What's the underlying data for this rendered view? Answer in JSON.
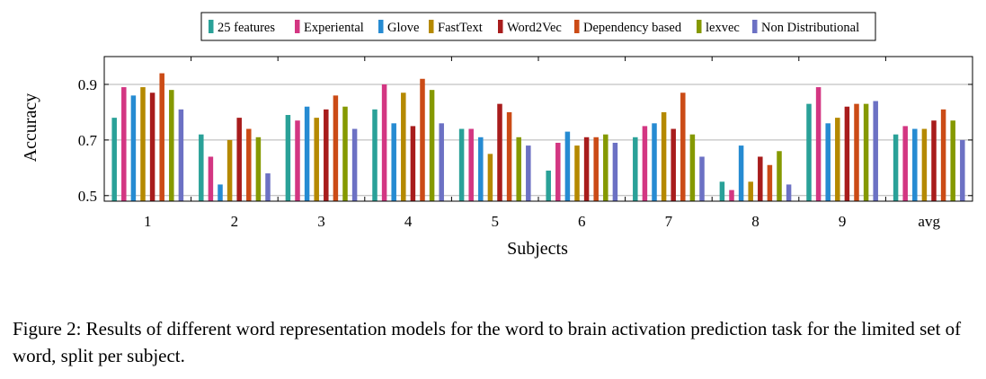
{
  "chart_data": {
    "type": "bar",
    "xlabel": "Subjects",
    "ylabel": "Accuracy",
    "ylim": [
      0.48,
      1.0
    ],
    "yticks": [
      0.5,
      0.7,
      0.9
    ],
    "ytick_labels": [
      "0.5",
      "0.7",
      "0.9"
    ],
    "grid": "horizontal",
    "legend_position": "top-center",
    "categories": [
      "1",
      "2",
      "3",
      "4",
      "5",
      "6",
      "7",
      "8",
      "9",
      "avg"
    ],
    "series": [
      {
        "name": "25 features",
        "color": "#2aa198",
        "values": [
          0.78,
          0.72,
          0.79,
          0.81,
          0.74,
          0.59,
          0.71,
          0.55,
          0.83,
          0.72
        ]
      },
      {
        "name": "Experiental",
        "color": "#d33682",
        "values": [
          0.89,
          0.64,
          0.77,
          0.9,
          0.74,
          0.69,
          0.75,
          0.52,
          0.89,
          0.75
        ]
      },
      {
        "name": "Glove",
        "color": "#268bd2",
        "values": [
          0.86,
          0.54,
          0.82,
          0.76,
          0.71,
          0.73,
          0.76,
          0.68,
          0.76,
          0.74
        ]
      },
      {
        "name": "FastText",
        "color": "#b58900",
        "values": [
          0.89,
          0.7,
          0.78,
          0.87,
          0.65,
          0.68,
          0.8,
          0.55,
          0.78,
          0.74
        ]
      },
      {
        "name": "Word2Vec",
        "color": "#a81c1c",
        "values": [
          0.87,
          0.78,
          0.81,
          0.75,
          0.83,
          0.71,
          0.74,
          0.64,
          0.82,
          0.77
        ]
      },
      {
        "name": "Dependency based",
        "color": "#cb4b16",
        "values": [
          0.94,
          0.74,
          0.86,
          0.92,
          0.8,
          0.71,
          0.87,
          0.61,
          0.83,
          0.81
        ]
      },
      {
        "name": "lexvec",
        "color": "#859900",
        "values": [
          0.88,
          0.71,
          0.82,
          0.88,
          0.71,
          0.72,
          0.72,
          0.66,
          0.83,
          0.77
        ]
      },
      {
        "name": "Non Distributional",
        "color": "#6c71c4",
        "values": [
          0.81,
          0.58,
          0.74,
          0.76,
          0.68,
          0.69,
          0.64,
          0.54,
          0.84,
          0.7
        ]
      }
    ]
  },
  "caption": "Figure 2: Results of different word representation models for the word to brain activation prediction task for the limited set of word, split per subject."
}
